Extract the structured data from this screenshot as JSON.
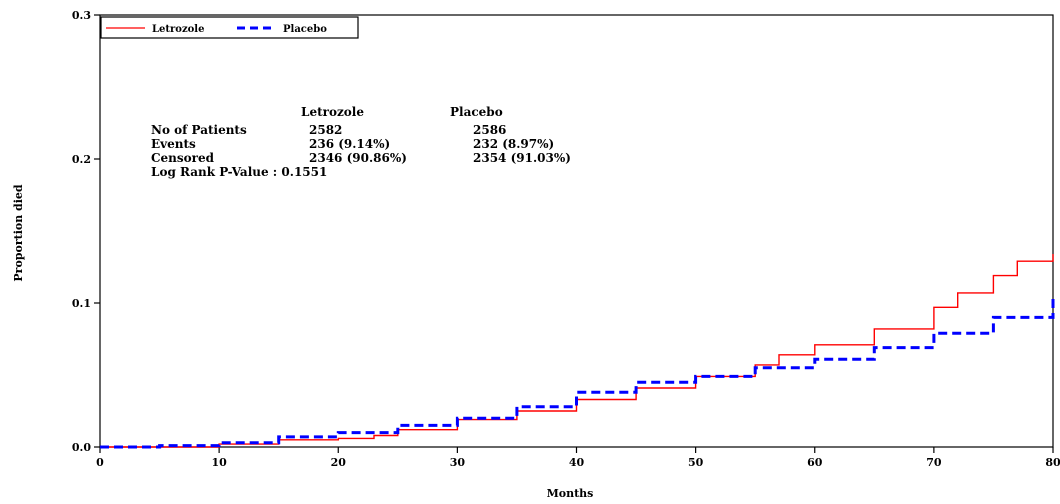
{
  "chart_data": {
    "type": "line",
    "title": "",
    "xlabel": "Months",
    "ylabel": "Proportion died",
    "xlim": [
      0,
      80
    ],
    "ylim": [
      0,
      0.3
    ],
    "x_ticks": [
      0,
      10,
      20,
      30,
      40,
      50,
      60,
      70,
      80
    ],
    "x_tick_labels": [
      "0",
      "10",
      "20",
      "30",
      "40",
      "50",
      "60",
      "70",
      "80"
    ],
    "y_ticks": [
      0,
      0.1,
      0.2,
      0.3
    ],
    "y_tick_labels": [
      "0.0",
      "0.1",
      "0.2",
      "0.3"
    ],
    "grid": false,
    "legend_position": "top-left",
    "series": [
      {
        "name": "Letrozole",
        "color": "#ff0000",
        "line_style": "solid",
        "x": [
          0,
          5,
          10,
          15,
          20,
          23,
          25,
          30,
          35,
          40,
          45,
          50,
          55,
          57,
          60,
          65,
          70,
          72,
          75,
          77,
          80
        ],
        "y": [
          0.0,
          0.0,
          0.002,
          0.005,
          0.006,
          0.008,
          0.012,
          0.019,
          0.025,
          0.033,
          0.041,
          0.049,
          0.057,
          0.064,
          0.071,
          0.082,
          0.097,
          0.107,
          0.119,
          0.129,
          0.134
        ]
      },
      {
        "name": "Placebo",
        "color": "#0000ff",
        "line_style": "dashed",
        "x": [
          0,
          5,
          10,
          15,
          20,
          25,
          30,
          35,
          40,
          45,
          50,
          55,
          60,
          65,
          70,
          75,
          80
        ],
        "y": [
          0.0,
          0.001,
          0.003,
          0.007,
          0.01,
          0.015,
          0.02,
          0.028,
          0.038,
          0.045,
          0.049,
          0.055,
          0.061,
          0.069,
          0.079,
          0.09,
          0.104
        ]
      }
    ],
    "annotation": {
      "header": [
        "",
        "Letrozole",
        "Placebo"
      ],
      "rows": [
        [
          "No of Patients",
          "2582",
          "2586"
        ],
        [
          "Events",
          "236 (9.14%)",
          "232 (8.97%)"
        ],
        [
          "Censored",
          "2346 (90.86%)",
          "2354 (91.03%)"
        ]
      ],
      "footer": "Log Rank P-Value : 0.1551"
    }
  }
}
